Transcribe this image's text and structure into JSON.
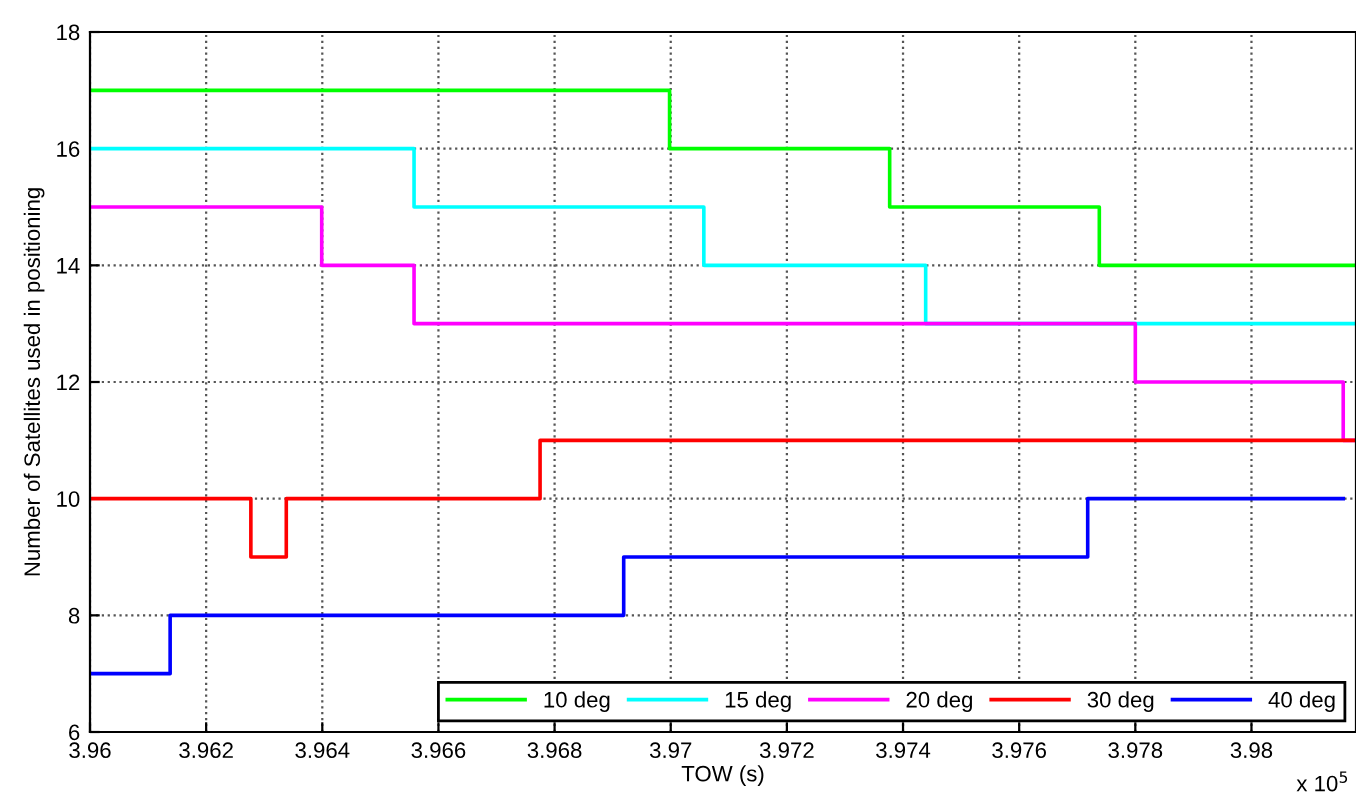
{
  "chart_data": {
    "type": "step",
    "xlabel": "TOW (s)",
    "ylabel": "Number of Satellites used in positioning",
    "annotations": [
      "x 10$^{5}$"
    ],
    "xlim": [
      3.96,
      3.9818
    ],
    "xticks": [
      3.96,
      3.962,
      3.964,
      3.966,
      3.968,
      3.97,
      3.972,
      3.974,
      3.976,
      3.978,
      3.98
    ],
    "ylim": [
      6,
      18
    ],
    "yticks": [
      6,
      8,
      10,
      12,
      14,
      16,
      18
    ],
    "grid": true,
    "legend": "bottom right",
    "line_style": "solid",
    "marker": "none",
    "series": [
      {
        "name": "10 deg",
        "color": "#00ff00",
        "x": [
          3.96,
          3.96998,
          3.97377,
          3.97738,
          3.9818
        ],
        "values": [
          17,
          16,
          15,
          14,
          14
        ]
      },
      {
        "name": "15 deg",
        "color": "#00ffff",
        "x": [
          3.96,
          3.96558,
          3.97057,
          3.97439,
          3.9818
        ],
        "values": [
          16,
          15,
          14,
          13,
          13
        ]
      },
      {
        "name": "20 deg",
        "color": "#ff00ff",
        "x": [
          3.96,
          3.96399,
          3.96558,
          3.978,
          3.98158,
          3.9818
        ],
        "values": [
          15,
          14,
          13,
          12,
          11,
          11
        ]
      },
      {
        "name": "30 deg",
        "color": "#ff0000",
        "x": [
          3.96,
          3.96277,
          3.96338,
          3.96775,
          3.9818
        ],
        "values": [
          10,
          9,
          10,
          11,
          11
        ]
      },
      {
        "name": "40 deg",
        "color": "#0000ff",
        "x": [
          3.96,
          3.96138,
          3.96919,
          3.97718,
          3.98158
        ],
        "values": [
          7,
          8,
          9,
          10,
          10
        ]
      }
    ]
  }
}
